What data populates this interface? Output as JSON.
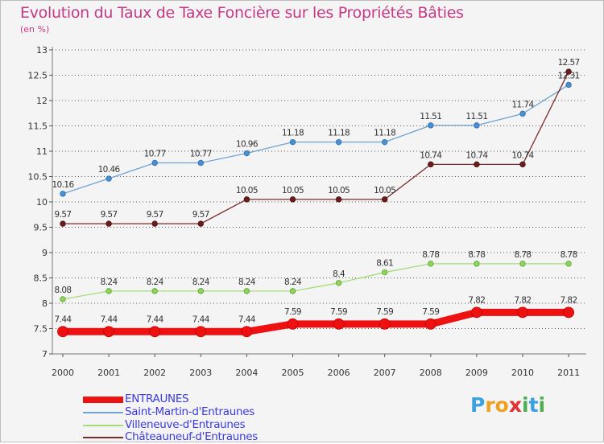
{
  "header": {
    "title": "Evolution du Taux de Taxe Foncière sur les Propriétés Bâties",
    "unit": "(en %)"
  },
  "colors": {
    "background": "#f4f4f4",
    "grid": "#222222",
    "title": "#c43a84",
    "legend_text": "#3a3adf"
  },
  "chart_data": {
    "type": "line",
    "title": "Evolution du Taux de Taxe Foncière sur les Propriétés Bâties",
    "subtitle": "(en %)",
    "xlabel": "",
    "ylabel": "",
    "x": [
      "2000",
      "2001",
      "2002",
      "2003",
      "2004",
      "2005",
      "2006",
      "2007",
      "2008",
      "2009",
      "2010",
      "2011"
    ],
    "ylim": [
      7,
      13
    ],
    "yticks": [
      "7",
      "7.5",
      "8",
      "8.5",
      "9",
      "9.5",
      "10",
      "10.5",
      "11",
      "11.5",
      "12",
      "12.5",
      "13"
    ],
    "grid": "horizontal dashed",
    "legend_position": "bottom-left",
    "series": [
      {
        "name": "ENTRAUNES",
        "color": "#ee1111",
        "values": [
          7.44,
          7.44,
          7.44,
          7.44,
          7.44,
          7.59,
          7.59,
          7.59,
          7.59,
          7.82,
          7.82,
          7.82
        ],
        "labels": [
          "7.44",
          "7.44",
          "7.44",
          "7.44",
          "7.44",
          "7.59",
          "7.59",
          "7.59",
          "7.59",
          "7.82",
          "7.82",
          "7.82"
        ]
      },
      {
        "name": "Saint-Martin-d'Entraunes",
        "color": "#6fa3d4",
        "values": [
          10.16,
          10.46,
          10.77,
          10.77,
          10.96,
          11.18,
          11.18,
          11.18,
          11.51,
          11.51,
          11.74,
          12.31
        ],
        "labels": [
          "10.16",
          "10.46",
          "10.77",
          "10.77",
          "10.96",
          "11.18",
          "11.18",
          "11.18",
          "11.51",
          "11.51",
          "11.74",
          "12.31"
        ]
      },
      {
        "name": "Villeneuve-d'Entraunes",
        "color": "#a6dc78",
        "values": [
          8.08,
          8.24,
          8.24,
          8.24,
          8.24,
          8.24,
          8.4,
          8.61,
          8.78,
          8.78,
          8.78,
          8.78
        ],
        "labels": [
          "8.08",
          "8.24",
          "8.24",
          "8.24",
          "8.24",
          "8.24",
          "8.4",
          "8.61",
          "8.78",
          "8.78",
          "8.78",
          "8.78"
        ]
      },
      {
        "name": "Châteauneuf-d'Entraunes",
        "color": "#7a2a2a",
        "values": [
          9.57,
          9.57,
          9.57,
          9.57,
          10.05,
          10.05,
          10.05,
          10.05,
          10.74,
          10.74,
          10.74,
          12.57
        ],
        "labels": [
          "9.57",
          "9.57",
          "9.57",
          "9.57",
          "10.05",
          "10.05",
          "10.05",
          "10.05",
          "10.74",
          "10.74",
          "10.74",
          "12.57"
        ]
      }
    ]
  },
  "legend": {
    "items": [
      {
        "label": "ENTRAUNES"
      },
      {
        "label": "Saint-Martin-d'Entraunes"
      },
      {
        "label": "Villeneuve-d'Entraunes"
      },
      {
        "label": "Châteauneuf-d'Entraunes"
      }
    ]
  },
  "logo": {
    "letters": [
      "P",
      "r",
      "o",
      "x",
      "i",
      "t",
      "i"
    ],
    "colors": [
      "#3aa0e0",
      "#f0a020",
      "#f0a020",
      "#e03030",
      "#4caf50",
      "#3aa0e0",
      "#4caf50"
    ]
  }
}
